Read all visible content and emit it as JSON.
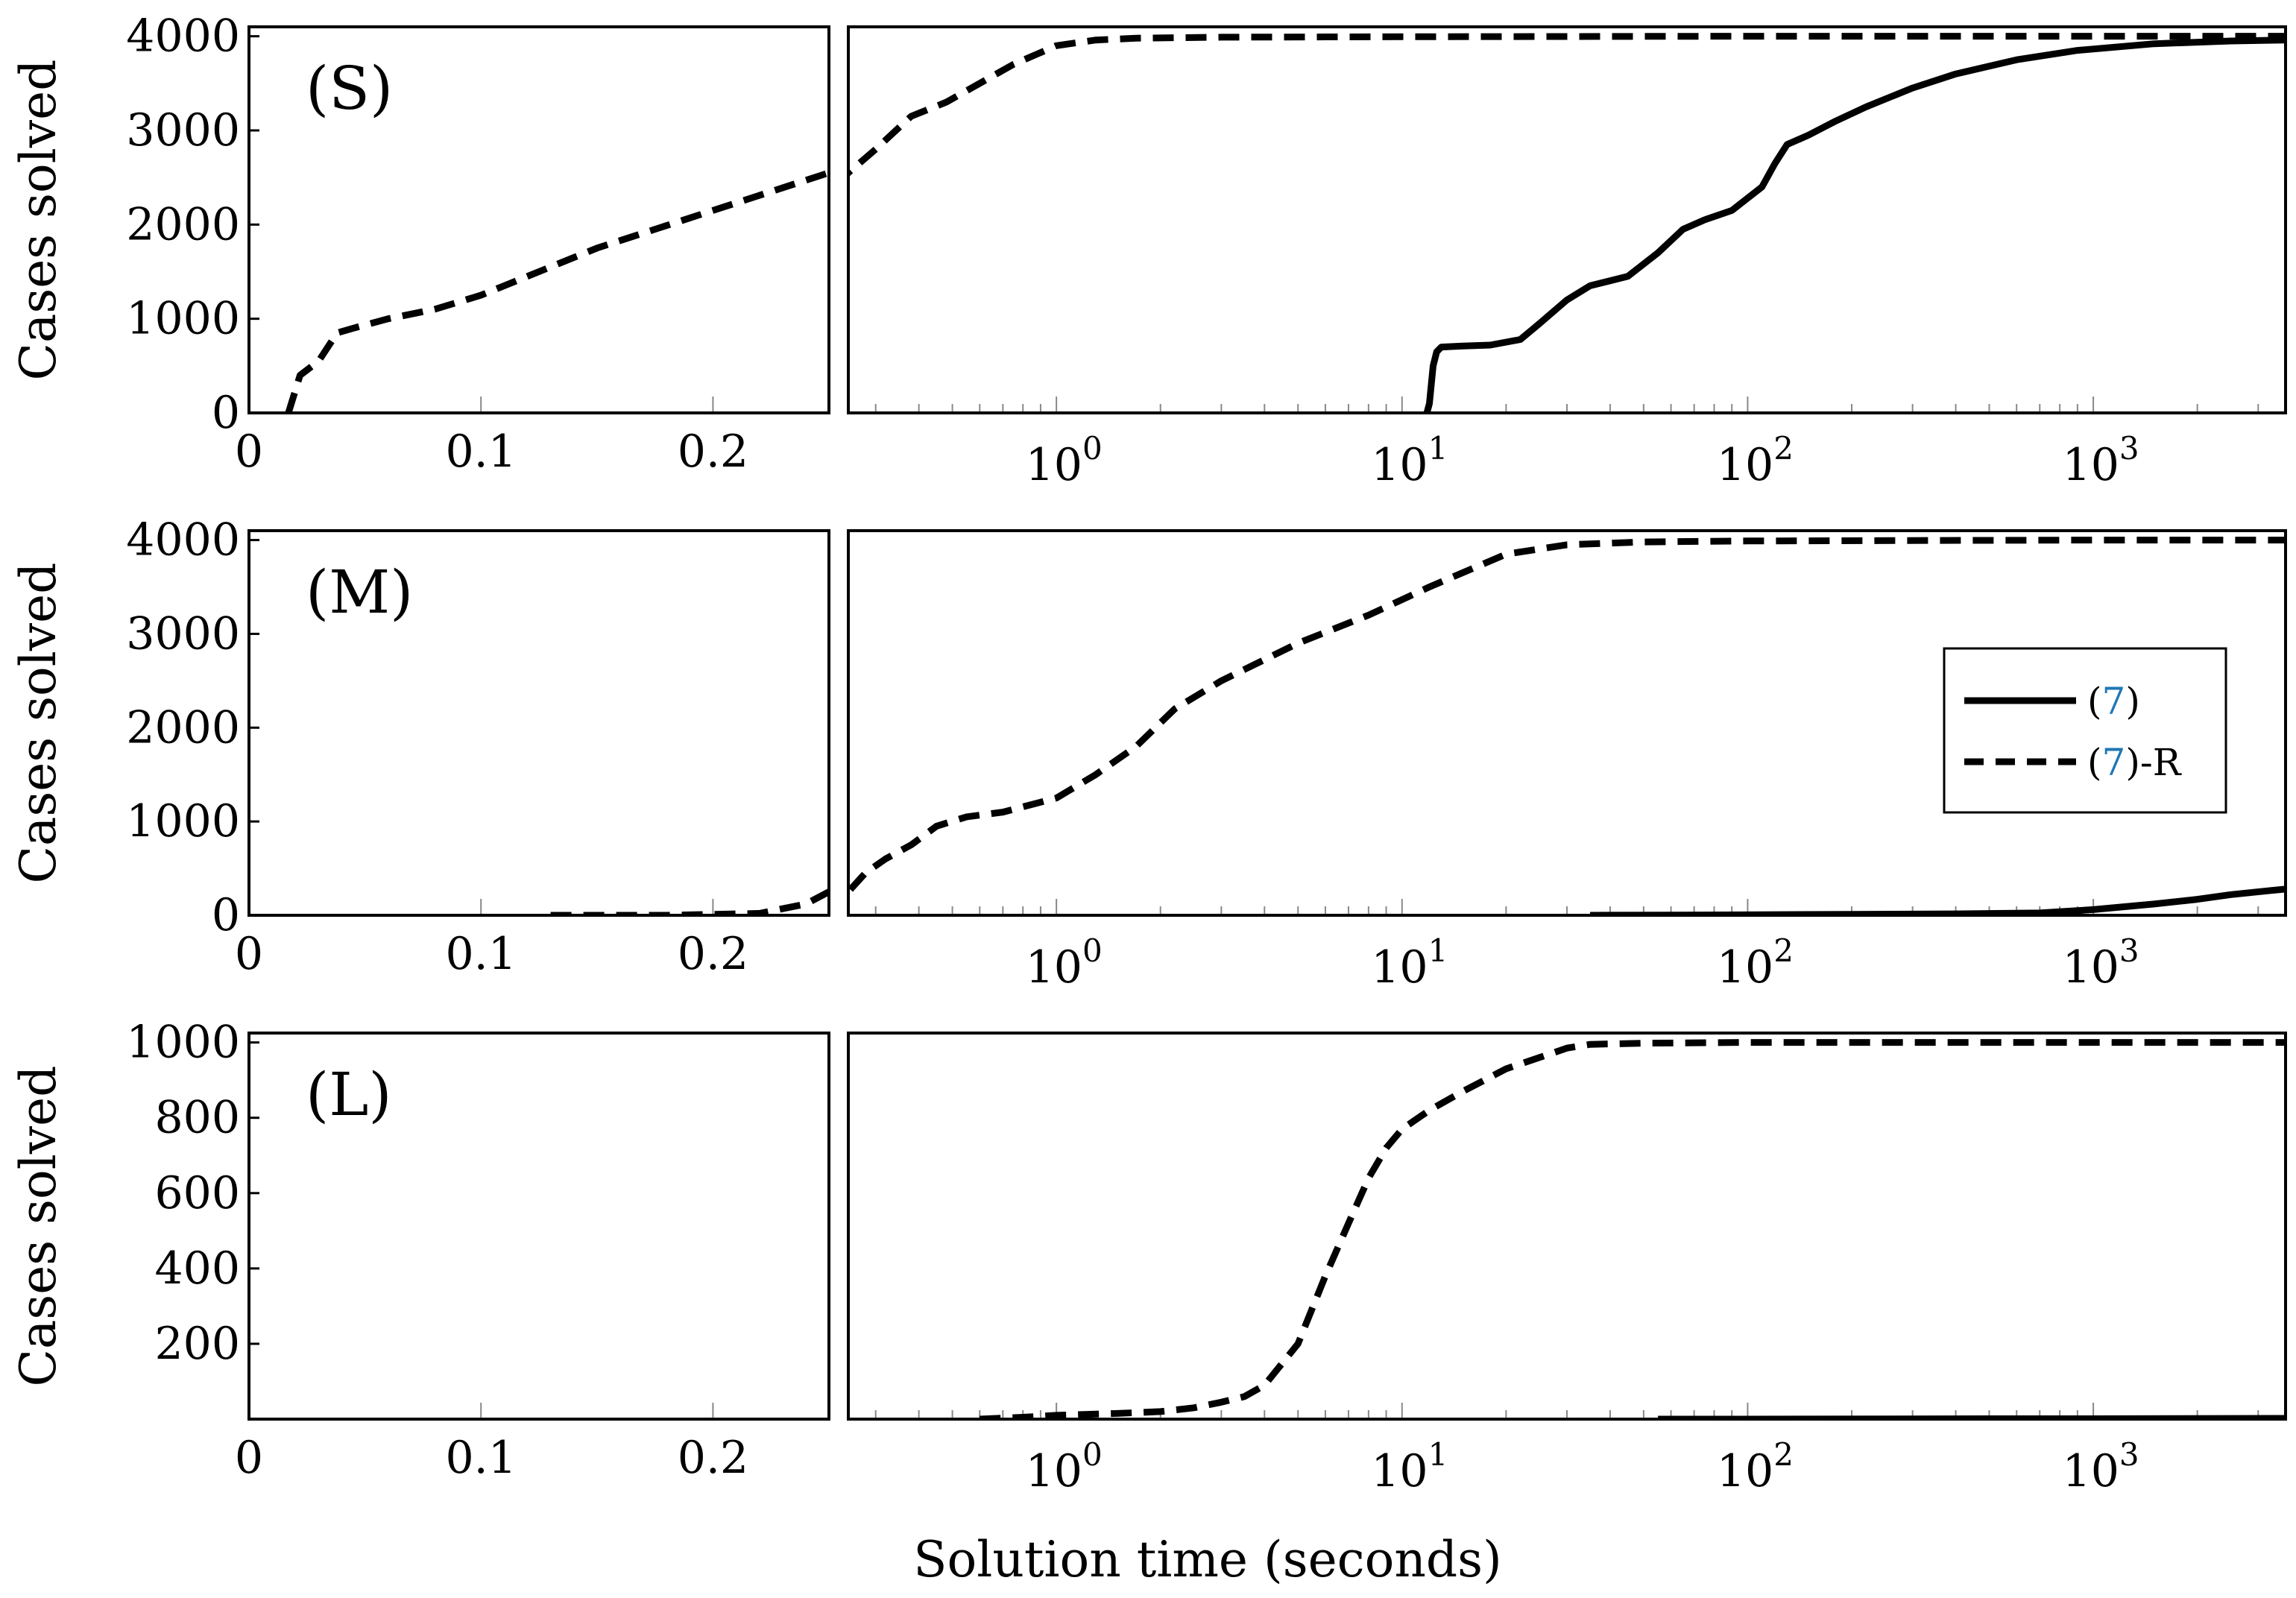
{
  "figure": {
    "xlabel": "Solution time (seconds)",
    "legend": {
      "placement": "right of middle panel",
      "entries": [
        {
          "prefix": "(",
          "ref": "7",
          "suffix": ")",
          "style": "solid"
        },
        {
          "prefix": "(",
          "ref": "7",
          "suffix": ")-R",
          "style": "dashed"
        }
      ],
      "ref_color": "#1f77b4"
    }
  },
  "chart_data": [
    {
      "type": "line",
      "label": "(S)",
      "ylabel": "Cases solved",
      "ylim": [
        0,
        4100
      ],
      "yticks": [
        0,
        1000,
        2000,
        3000,
        4000
      ],
      "linear_segment": {
        "xlim": [
          0,
          0.25
        ],
        "xticks": [
          0,
          0.1,
          0.2
        ],
        "xtick_labels": [
          "0",
          "0.1",
          "0.2"
        ]
      },
      "log_segment": {
        "xlim": [
          0.25,
          3600
        ],
        "xticks": [
          1,
          10,
          100,
          1000
        ],
        "xtick_base": "10",
        "xtick_exps": [
          "0",
          "1",
          "2",
          "3"
        ]
      },
      "series": [
        {
          "name": "(7)",
          "style": "solid",
          "x": [
            11.8,
            12.0,
            12.3,
            12.6,
            13,
            15,
            18,
            22,
            25,
            30,
            35,
            45,
            55,
            65,
            75,
            90,
            110,
            120,
            130,
            150,
            180,
            220,
            300,
            400,
            600,
            900,
            1500,
            2500,
            3600
          ],
          "y": [
            0,
            100,
            500,
            650,
            700,
            710,
            720,
            780,
            950,
            1200,
            1350,
            1450,
            1700,
            1950,
            2050,
            2150,
            2400,
            2650,
            2850,
            2950,
            3100,
            3250,
            3450,
            3600,
            3750,
            3850,
            3920,
            3950,
            3960
          ]
        },
        {
          "name": "(7)-R",
          "style": "dashed",
          "x": [
            0.017,
            0.022,
            0.03,
            0.038,
            0.045,
            0.06,
            0.08,
            0.1,
            0.12,
            0.15,
            0.2,
            0.25,
            0.3,
            0.38,
            0.48,
            0.6,
            0.75,
            1.0,
            1.3,
            1.7,
            3,
            10,
            100,
            1000,
            3600
          ],
          "y": [
            0,
            400,
            550,
            850,
            900,
            1000,
            1100,
            1250,
            1450,
            1750,
            2150,
            2550,
            2800,
            3150,
            3300,
            3500,
            3700,
            3900,
            3960,
            3980,
            3990,
            3995,
            4000,
            4000,
            4000
          ]
        }
      ]
    },
    {
      "type": "line",
      "label": "(M)",
      "ylabel": "Cases solved",
      "ylim": [
        0,
        4100
      ],
      "yticks": [
        0,
        1000,
        2000,
        3000,
        4000
      ],
      "linear_segment": {
        "xlim": [
          0,
          0.25
        ],
        "xticks": [
          0,
          0.1,
          0.2
        ],
        "xtick_labels": [
          "0",
          "0.1",
          "0.2"
        ]
      },
      "log_segment": {
        "xlim": [
          0.25,
          3600
        ],
        "xticks": [
          1,
          10,
          100,
          1000
        ],
        "xtick_base": "10",
        "xtick_exps": [
          "0",
          "1",
          "2",
          "3"
        ]
      },
      "series": [
        {
          "name": "(7)",
          "style": "solid",
          "x": [
            35,
            60,
            100,
            200,
            400,
            700,
            1000,
            1500,
            2000,
            2500,
            3600
          ],
          "y": [
            0,
            2,
            5,
            10,
            15,
            25,
            60,
            120,
            170,
            220,
            280
          ]
        },
        {
          "name": "(7)-R",
          "style": "dashed",
          "x": [
            0.13,
            0.18,
            0.22,
            0.24,
            0.25,
            0.28,
            0.32,
            0.38,
            0.45,
            0.55,
            0.7,
            1.0,
            1.3,
            1.7,
            2.2,
            3,
            5,
            8,
            12,
            20,
            30,
            50,
            100,
            1000,
            3600
          ],
          "y": [
            0,
            0,
            20,
            120,
            250,
            450,
            600,
            750,
            950,
            1050,
            1100,
            1250,
            1500,
            1800,
            2200,
            2500,
            2900,
            3200,
            3500,
            3850,
            3950,
            3980,
            3990,
            4000,
            4000
          ]
        }
      ]
    },
    {
      "type": "line",
      "label": "(L)",
      "ylabel": "Cases solved",
      "ylim": [
        0,
        1025
      ],
      "yticks": [
        200,
        400,
        600,
        800,
        1000
      ],
      "linear_segment": {
        "xlim": [
          0,
          0.25
        ],
        "xticks": [
          0,
          0.1,
          0.2
        ],
        "xtick_labels": [
          "0",
          "0.1",
          "0.2"
        ]
      },
      "log_segment": {
        "xlim": [
          0.25,
          3600
        ],
        "xticks": [
          1,
          10,
          100,
          1000
        ],
        "xtick_base": "10",
        "xtick_exps": [
          "0",
          "1",
          "2",
          "3"
        ]
      },
      "series": [
        {
          "name": "(7)",
          "style": "solid",
          "x": [
            55,
            100,
            500,
            1000,
            3600
          ],
          "y": [
            0,
            0,
            1,
            1,
            2
          ]
        },
        {
          "name": "(7)-R",
          "style": "dashed",
          "x": [
            0.6,
            0.8,
            1.0,
            1.5,
            2,
            2.5,
            3,
            3.5,
            4,
            5,
            6,
            7,
            8,
            9,
            10,
            12,
            15,
            20,
            25,
            30,
            35,
            50,
            100,
            1000,
            3600
          ],
          "y": [
            0,
            5,
            10,
            15,
            20,
            30,
            45,
            60,
            90,
            200,
            380,
            520,
            640,
            720,
            770,
            820,
            870,
            930,
            960,
            985,
            995,
            998,
            1000,
            1000,
            1000
          ]
        }
      ]
    }
  ]
}
